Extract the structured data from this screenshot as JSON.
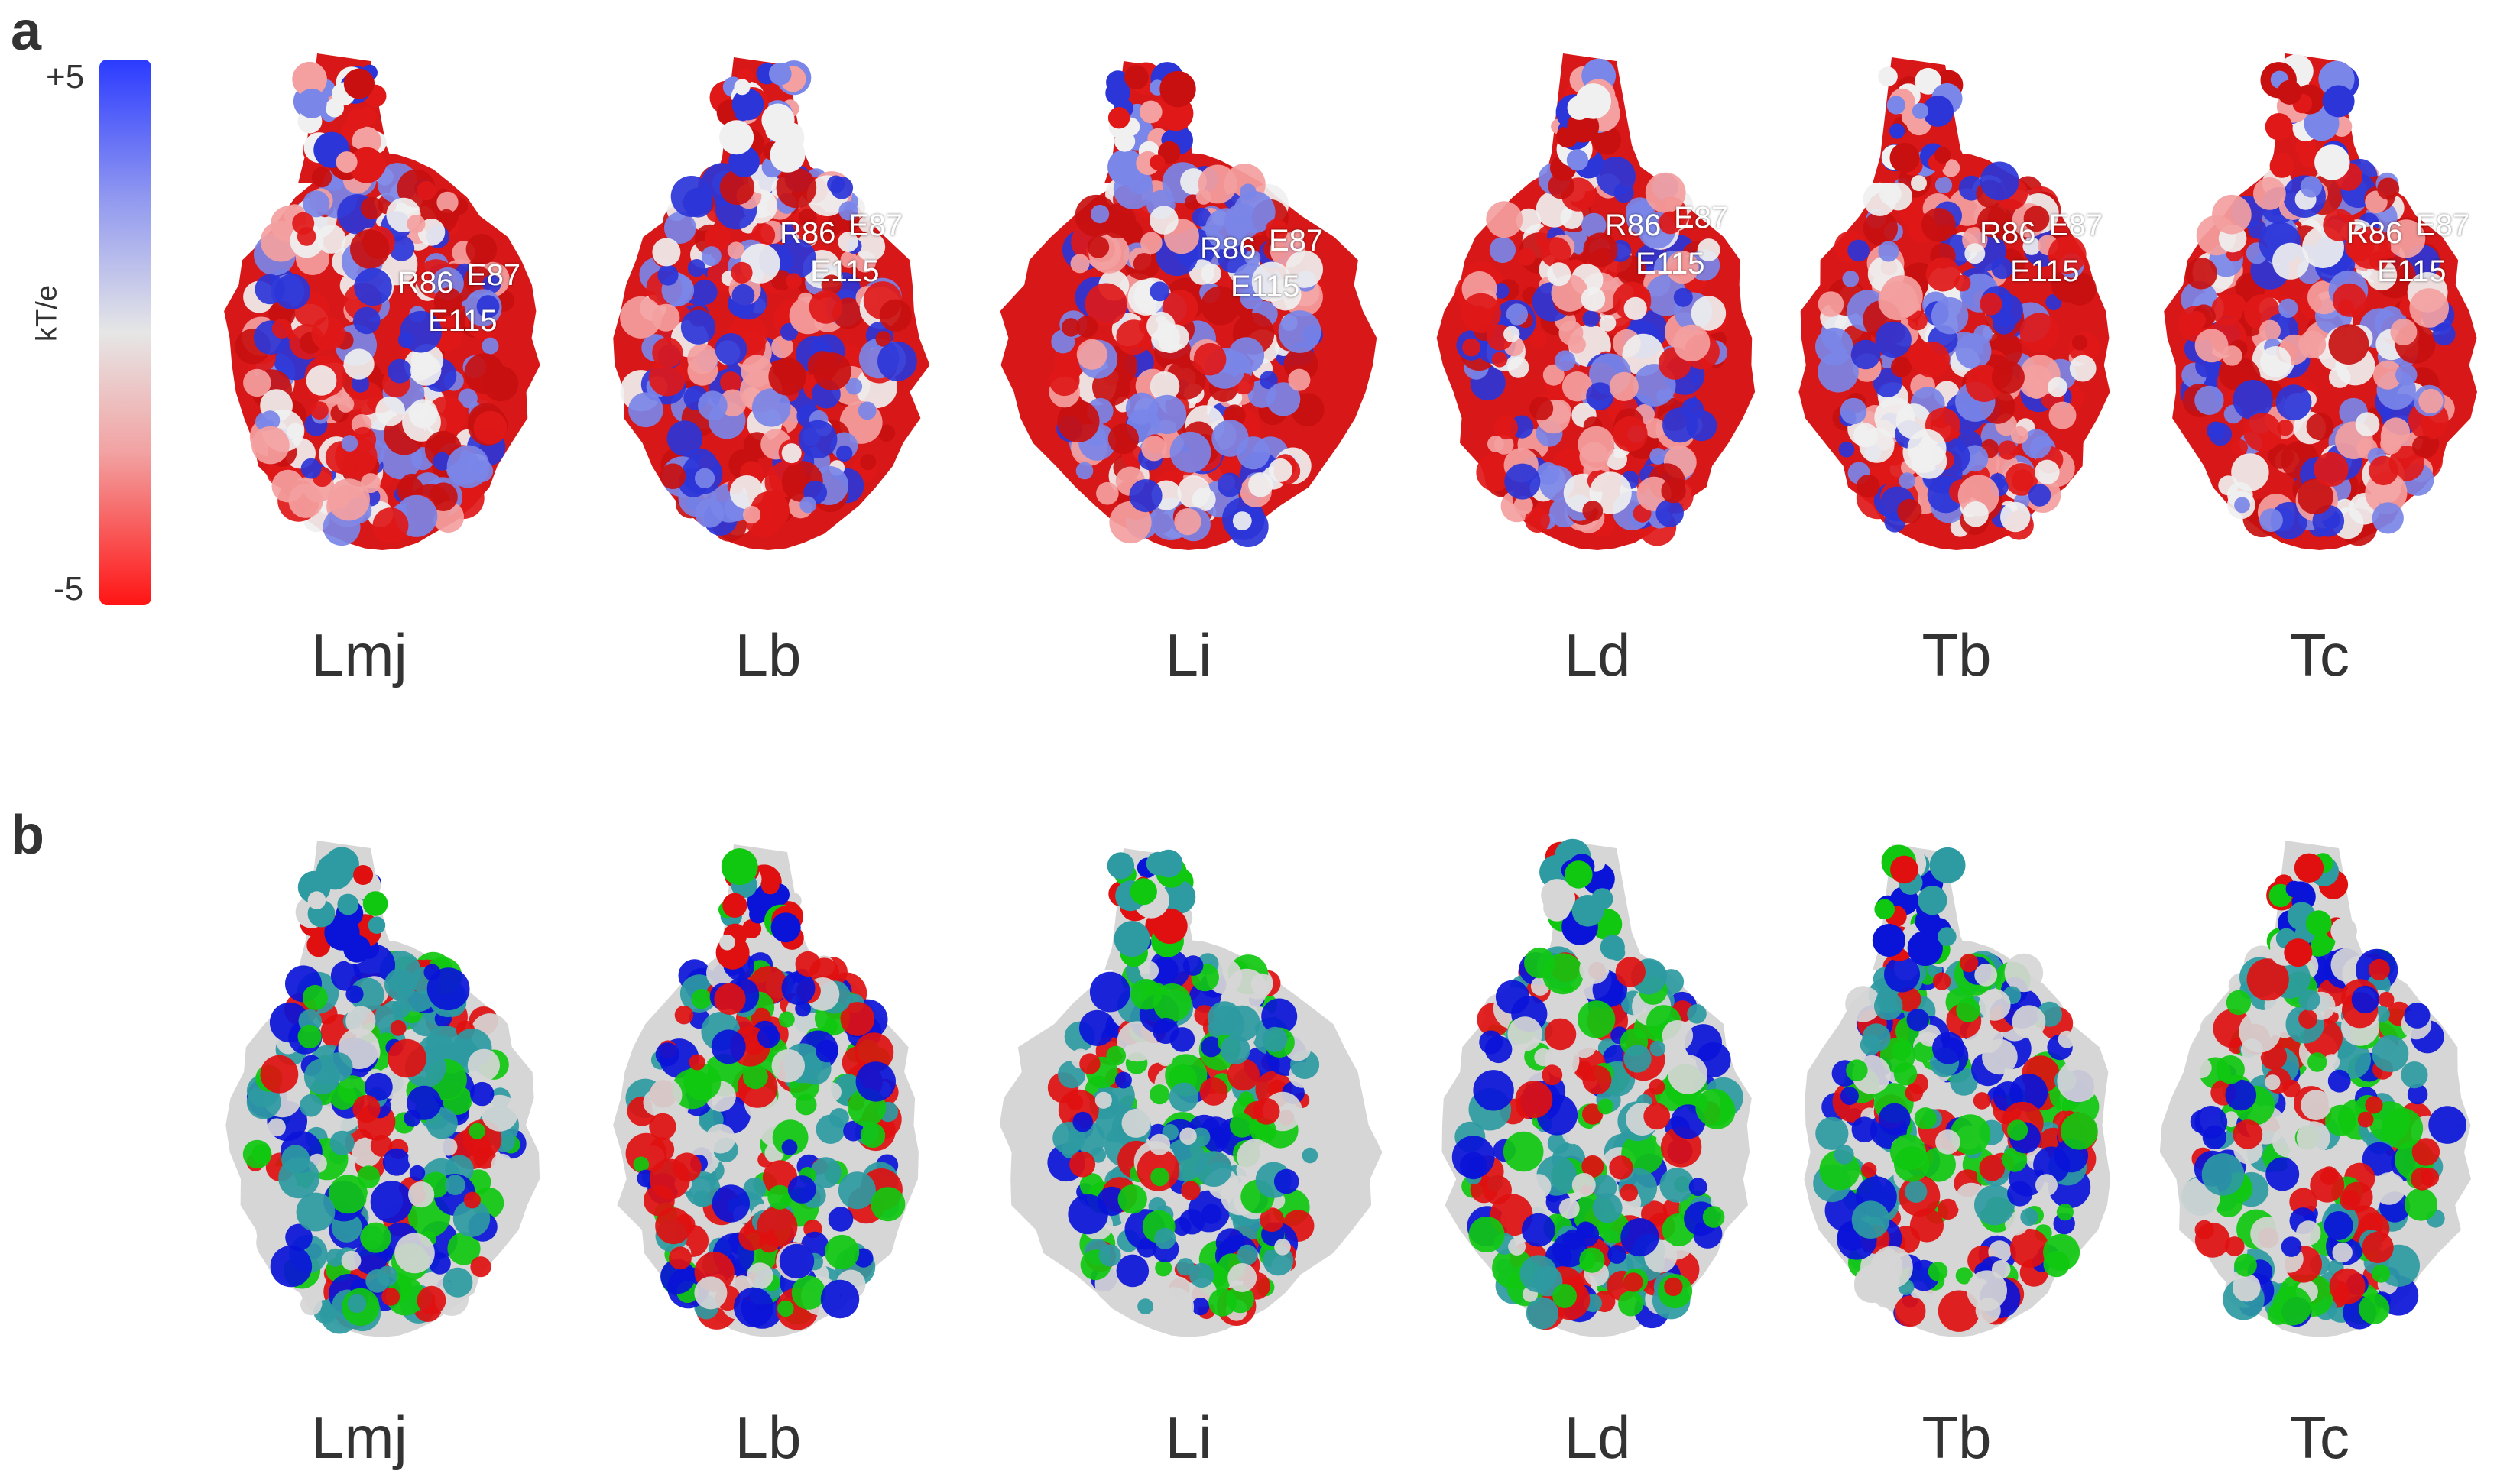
{
  "panels": {
    "a": {
      "letter": "a",
      "colorbar": {
        "max_label": "+5",
        "min_label": "-5",
        "unit_label": "kT/e",
        "top_color": "#2b3bff",
        "middle_color": "#e6e6e6",
        "bottom_color": "#ff1414"
      },
      "residues": {
        "r86": "R86",
        "e87": "E87",
        "e115": "E115"
      }
    },
    "b": {
      "letter": "b"
    }
  },
  "species": [
    "Lmj",
    "Lb",
    "Li",
    "Ld",
    "Tb",
    "Tc"
  ],
  "palette_electrostatic": [
    "#e01818",
    "#c81010",
    "#f0f0f0",
    "#2b35d8",
    "#7a86e8",
    "#f4a0a0"
  ],
  "palette_residue_type": [
    "#0a14d8",
    "#e01010",
    "#10c810",
    "#d6d6d6",
    "#2e9aa2"
  ]
}
